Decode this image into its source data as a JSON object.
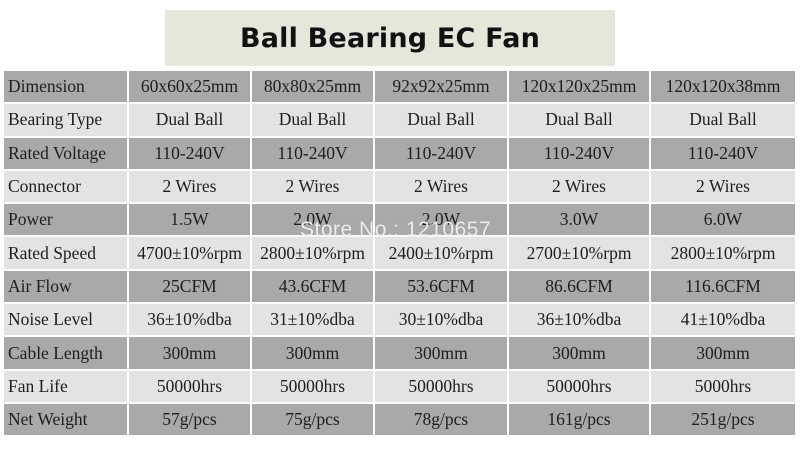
{
  "title": "Ball Bearing EC Fan",
  "watermark": "Store No.: 1210657",
  "table": {
    "rows": [
      {
        "label": "Dimension",
        "values": [
          "60x60x25mm",
          "80x80x25mm",
          "92x92x25mm",
          "120x120x25mm",
          "120x120x38mm"
        ]
      },
      {
        "label": "Bearing Type",
        "values": [
          "Dual Ball",
          "Dual Ball",
          "Dual Ball",
          "Dual Ball",
          "Dual Ball"
        ]
      },
      {
        "label": "Rated Voltage",
        "values": [
          "110-240V",
          "110-240V",
          "110-240V",
          "110-240V",
          "110-240V"
        ]
      },
      {
        "label": "Connector",
        "values": [
          "2 Wires",
          "2 Wires",
          "2 Wires",
          "2 Wires",
          "2 Wires"
        ]
      },
      {
        "label": "Power",
        "values": [
          "1.5W",
          "2.0W",
          "2.0W",
          "3.0W",
          "6.0W"
        ]
      },
      {
        "label": "Rated Speed",
        "values": [
          "4700±10%rpm",
          "2800±10%rpm",
          "2400±10%rpm",
          "2700±10%rpm",
          "2800±10%rpm"
        ]
      },
      {
        "label": "Air Flow",
        "values": [
          "25CFM",
          "43.6CFM",
          "53.6CFM",
          "86.6CFM",
          "116.6CFM"
        ]
      },
      {
        "label": "Noise Level",
        "values": [
          "36±10%dba",
          "31±10%dba",
          "30±10%dba",
          "36±10%dba",
          "41±10%dba"
        ]
      },
      {
        "label": "Cable Length",
        "values": [
          "300mm",
          "300mm",
          "300mm",
          "300mm",
          "300mm"
        ]
      },
      {
        "label": "Fan Life",
        "values": [
          "50000hrs",
          "50000hrs",
          "50000hrs",
          "50000hrs",
          "5000hrs"
        ]
      },
      {
        "label": "Net Weight",
        "values": [
          "57g/pcs",
          "75g/pcs",
          "78g/pcs",
          "161g/pcs",
          "251g/pcs"
        ]
      }
    ]
  },
  "colors": {
    "title_background": "#e7e6da",
    "row_dark": "#a9a9a9",
    "row_light": "#e3e3e3"
  }
}
